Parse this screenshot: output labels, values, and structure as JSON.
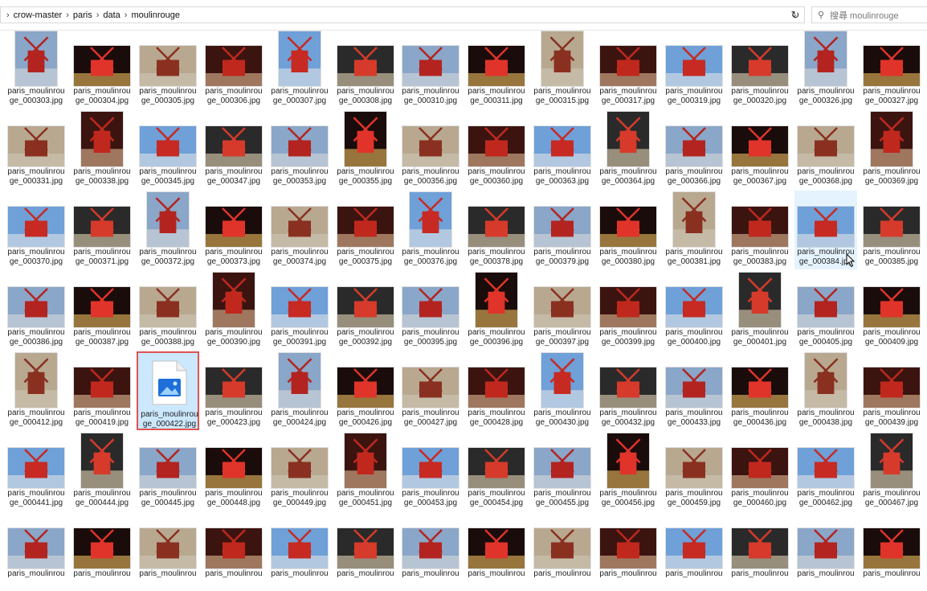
{
  "address_bar": {
    "breadcrumbs": [
      "crow-master",
      "paris",
      "data",
      "moulinrouge"
    ],
    "separator": "›",
    "dropdown_icon": "chevron-down-icon",
    "refresh_icon": "refresh-icon"
  },
  "search": {
    "placeholder": "搜尋 moulinrouge",
    "icon": "search-icon"
  },
  "file_prefix": "paris_moulinrou",
  "selected_file": "000422",
  "hovered_file": "000384",
  "file_rows": [
    [
      "000303",
      "000304",
      "000305",
      "000306",
      "000307",
      "000308",
      "000310",
      "000311",
      "000315",
      "000317",
      "000319",
      "000320",
      "000326",
      "000327"
    ],
    [
      "000331",
      "000338",
      "000345",
      "000347",
      "000353",
      "000355",
      "000356",
      "000360",
      "000363",
      "000364",
      "000366",
      "000367",
      "000368",
      "000369"
    ],
    [
      "000370",
      "000371",
      "000372",
      "000373",
      "000374",
      "000375",
      "000376",
      "000378",
      "000379",
      "000380",
      "000381",
      "000383",
      "000384",
      "000385"
    ],
    [
      "000386",
      "000387",
      "000388",
      "000390",
      "000391",
      "000392",
      "000395",
      "000396",
      "000397",
      "000399",
      "000400",
      "000401",
      "000405",
      "000409"
    ],
    [
      "000412",
      "000419",
      "000422",
      "000423",
      "000424",
      "000426",
      "000427",
      "000428",
      "000430",
      "000432",
      "000433",
      "000436",
      "000438",
      "000439"
    ],
    [
      "000441",
      "000444",
      "000445",
      "000448",
      "000449",
      "000451",
      "000453",
      "000454",
      "000455",
      "000456",
      "000459",
      "000460",
      "000462",
      "000467"
    ],
    [
      "",
      "",
      "",
      "",
      "",
      "",
      "",
      "",
      "",
      "",
      "",
      "",
      "",
      ""
    ]
  ],
  "colors": {
    "selection_border": "#e05353",
    "selection_fill": "#cce8ff",
    "accent_blue": "#1e6fd9"
  }
}
